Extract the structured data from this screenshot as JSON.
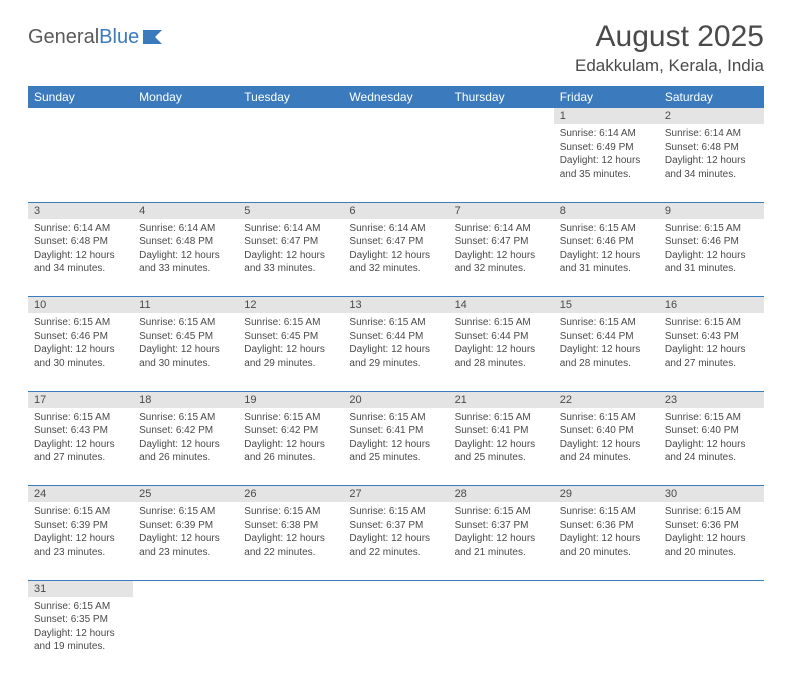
{
  "logo": {
    "text1": "General",
    "text2": "Blue"
  },
  "title": "August 2025",
  "location": "Edakkulam, Kerala, India",
  "colors": {
    "header_bg": "#3a7abd",
    "header_text": "#ffffff",
    "daynum_bg": "#e4e4e4",
    "row_border": "#3a7abd",
    "text": "#4a4a4a"
  },
  "daynames": [
    "Sunday",
    "Monday",
    "Tuesday",
    "Wednesday",
    "Thursday",
    "Friday",
    "Saturday"
  ],
  "weeks": [
    [
      null,
      null,
      null,
      null,
      null,
      {
        "n": "1",
        "sr": "6:14 AM",
        "ss": "6:49 PM",
        "dl": "12 hours and 35 minutes."
      },
      {
        "n": "2",
        "sr": "6:14 AM",
        "ss": "6:48 PM",
        "dl": "12 hours and 34 minutes."
      }
    ],
    [
      {
        "n": "3",
        "sr": "6:14 AM",
        "ss": "6:48 PM",
        "dl": "12 hours and 34 minutes."
      },
      {
        "n": "4",
        "sr": "6:14 AM",
        "ss": "6:48 PM",
        "dl": "12 hours and 33 minutes."
      },
      {
        "n": "5",
        "sr": "6:14 AM",
        "ss": "6:47 PM",
        "dl": "12 hours and 33 minutes."
      },
      {
        "n": "6",
        "sr": "6:14 AM",
        "ss": "6:47 PM",
        "dl": "12 hours and 32 minutes."
      },
      {
        "n": "7",
        "sr": "6:14 AM",
        "ss": "6:47 PM",
        "dl": "12 hours and 32 minutes."
      },
      {
        "n": "8",
        "sr": "6:15 AM",
        "ss": "6:46 PM",
        "dl": "12 hours and 31 minutes."
      },
      {
        "n": "9",
        "sr": "6:15 AM",
        "ss": "6:46 PM",
        "dl": "12 hours and 31 minutes."
      }
    ],
    [
      {
        "n": "10",
        "sr": "6:15 AM",
        "ss": "6:46 PM",
        "dl": "12 hours and 30 minutes."
      },
      {
        "n": "11",
        "sr": "6:15 AM",
        "ss": "6:45 PM",
        "dl": "12 hours and 30 minutes."
      },
      {
        "n": "12",
        "sr": "6:15 AM",
        "ss": "6:45 PM",
        "dl": "12 hours and 29 minutes."
      },
      {
        "n": "13",
        "sr": "6:15 AM",
        "ss": "6:44 PM",
        "dl": "12 hours and 29 minutes."
      },
      {
        "n": "14",
        "sr": "6:15 AM",
        "ss": "6:44 PM",
        "dl": "12 hours and 28 minutes."
      },
      {
        "n": "15",
        "sr": "6:15 AM",
        "ss": "6:44 PM",
        "dl": "12 hours and 28 minutes."
      },
      {
        "n": "16",
        "sr": "6:15 AM",
        "ss": "6:43 PM",
        "dl": "12 hours and 27 minutes."
      }
    ],
    [
      {
        "n": "17",
        "sr": "6:15 AM",
        "ss": "6:43 PM",
        "dl": "12 hours and 27 minutes."
      },
      {
        "n": "18",
        "sr": "6:15 AM",
        "ss": "6:42 PM",
        "dl": "12 hours and 26 minutes."
      },
      {
        "n": "19",
        "sr": "6:15 AM",
        "ss": "6:42 PM",
        "dl": "12 hours and 26 minutes."
      },
      {
        "n": "20",
        "sr": "6:15 AM",
        "ss": "6:41 PM",
        "dl": "12 hours and 25 minutes."
      },
      {
        "n": "21",
        "sr": "6:15 AM",
        "ss": "6:41 PM",
        "dl": "12 hours and 25 minutes."
      },
      {
        "n": "22",
        "sr": "6:15 AM",
        "ss": "6:40 PM",
        "dl": "12 hours and 24 minutes."
      },
      {
        "n": "23",
        "sr": "6:15 AM",
        "ss": "6:40 PM",
        "dl": "12 hours and 24 minutes."
      }
    ],
    [
      {
        "n": "24",
        "sr": "6:15 AM",
        "ss": "6:39 PM",
        "dl": "12 hours and 23 minutes."
      },
      {
        "n": "25",
        "sr": "6:15 AM",
        "ss": "6:39 PM",
        "dl": "12 hours and 23 minutes."
      },
      {
        "n": "26",
        "sr": "6:15 AM",
        "ss": "6:38 PM",
        "dl": "12 hours and 22 minutes."
      },
      {
        "n": "27",
        "sr": "6:15 AM",
        "ss": "6:37 PM",
        "dl": "12 hours and 22 minutes."
      },
      {
        "n": "28",
        "sr": "6:15 AM",
        "ss": "6:37 PM",
        "dl": "12 hours and 21 minutes."
      },
      {
        "n": "29",
        "sr": "6:15 AM",
        "ss": "6:36 PM",
        "dl": "12 hours and 20 minutes."
      },
      {
        "n": "30",
        "sr": "6:15 AM",
        "ss": "6:36 PM",
        "dl": "12 hours and 20 minutes."
      }
    ],
    [
      {
        "n": "31",
        "sr": "6:15 AM",
        "ss": "6:35 PM",
        "dl": "12 hours and 19 minutes."
      },
      null,
      null,
      null,
      null,
      null,
      null
    ]
  ],
  "labels": {
    "sunrise": "Sunrise:",
    "sunset": "Sunset:",
    "daylight": "Daylight:"
  }
}
